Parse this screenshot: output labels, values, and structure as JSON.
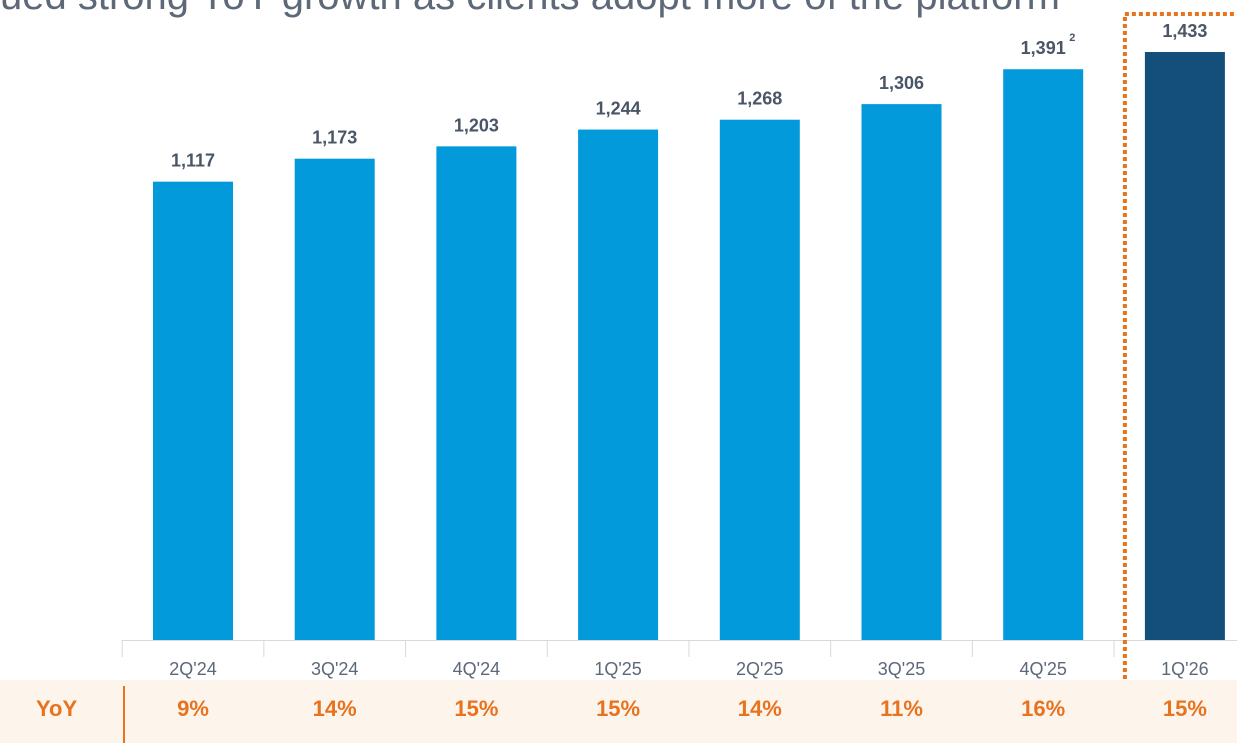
{
  "headline": "ued strong YoY growth as clients adopt more of the platform",
  "chart_data": {
    "type": "bar",
    "categories": [
      "2Q'24",
      "3Q'24",
      "4Q'24",
      "1Q'25",
      "2Q'25",
      "3Q'25",
      "4Q'25",
      "1Q'26"
    ],
    "values": [
      1117,
      1173,
      1203,
      1244,
      1268,
      1306,
      1391,
      1433
    ],
    "value_labels": [
      "1,117",
      "1,173",
      "1,203",
      "1,244",
      "1,268",
      "1,306",
      "1,391",
      "1,433"
    ],
    "footnotes": {
      "6": "2"
    },
    "highlight_index": 7,
    "ylim": [
      0,
      1433
    ],
    "grid": false,
    "colors": {
      "bar": "#029adb",
      "highlight_bar": "#144e7a",
      "highlight_outline": "#e8731f",
      "axis": "#d9d9d9"
    },
    "yoy": {
      "label": "YoY",
      "values": [
        "9%",
        "14%",
        "15%",
        "15%",
        "14%",
        "11%",
        "16%",
        "15%"
      ]
    }
  }
}
